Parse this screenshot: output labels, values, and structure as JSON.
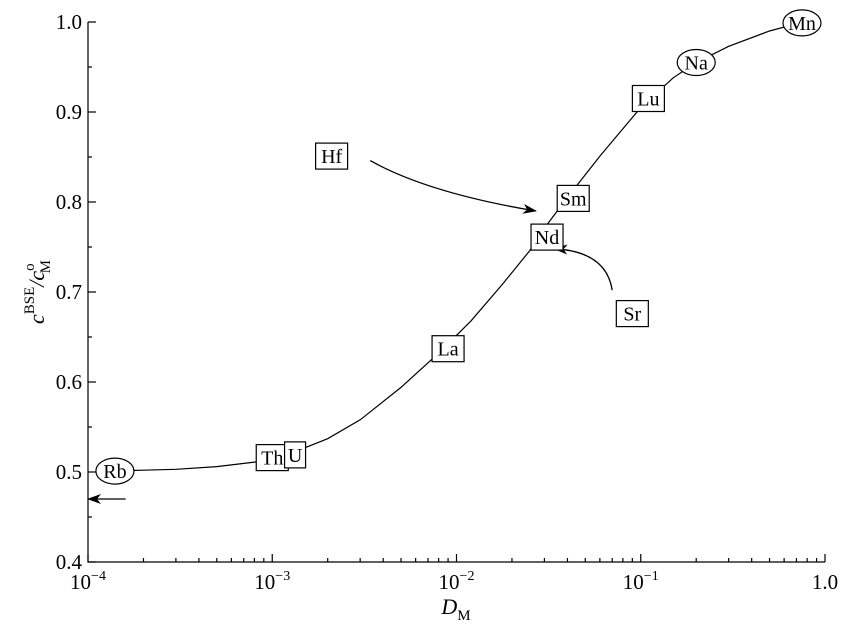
{
  "chart_data": {
    "type": "line",
    "xscale": "log",
    "xlim": [
      0.0001,
      1.0
    ],
    "ylim": [
      0.4,
      1.0
    ],
    "xlabel": "D",
    "xlabel_sub": "M",
    "ylabel": "c",
    "ylabel_sup": "BSE",
    "ylabel_mid": "/c",
    "ylabel_sup2": "o",
    "ylabel_sub": "M",
    "x_ticks": [
      {
        "value": 0.0001,
        "base": "10",
        "exp": "−4"
      },
      {
        "value": 0.001,
        "base": "10",
        "exp": "−3"
      },
      {
        "value": 0.01,
        "base": "10",
        "exp": "−2"
      },
      {
        "value": 0.1,
        "base": "10",
        "exp": "−1"
      },
      {
        "value": 1.0,
        "base": "1.0",
        "exp": ""
      }
    ],
    "y_ticks": [
      {
        "value": 0.4,
        "label": "0.4"
      },
      {
        "value": 0.5,
        "label": "0.5"
      },
      {
        "value": 0.6,
        "label": "0.6"
      },
      {
        "value": 0.7,
        "label": "0.7"
      },
      {
        "value": 0.8,
        "label": "0.8"
      },
      {
        "value": 0.9,
        "label": "0.9"
      },
      {
        "value": 1.0,
        "label": "1.0"
      }
    ],
    "y_minor_step": 0.05,
    "series": [
      {
        "x": [
          0.00013,
          0.0002,
          0.0003,
          0.0005,
          0.0008,
          0.0012,
          0.002,
          0.003,
          0.005,
          0.008,
          0.012,
          0.018,
          0.025,
          0.03,
          0.04,
          0.06,
          0.1,
          0.15,
          0.2,
          0.3,
          0.5,
          0.7,
          0.8
        ],
        "y": [
          0.501,
          0.502,
          0.503,
          0.506,
          0.511,
          0.519,
          0.537,
          0.558,
          0.594,
          0.632,
          0.668,
          0.71,
          0.746,
          0.771,
          0.805,
          0.851,
          0.905,
          0.938,
          0.955,
          0.973,
          0.99,
          0.998,
          1.0
        ]
      }
    ],
    "points": [
      {
        "label": "Rb",
        "x": 0.00014,
        "y": 0.501,
        "shape": "ellipse"
      },
      {
        "label": "Th",
        "x": 0.001,
        "y": 0.516,
        "shape": "box"
      },
      {
        "label": "U",
        "x": 0.00133,
        "y": 0.519,
        "shape": "box"
      },
      {
        "label": "La",
        "x": 0.009,
        "y": 0.637,
        "shape": "box"
      },
      {
        "label": "Nd",
        "x": 0.031,
        "y": 0.761,
        "shape": "box"
      },
      {
        "label": "Sm",
        "x": 0.043,
        "y": 0.804,
        "shape": "box"
      },
      {
        "label": "Lu",
        "x": 0.11,
        "y": 0.915,
        "shape": "box"
      },
      {
        "label": "Na",
        "x": 0.2,
        "y": 0.955,
        "shape": "ellipse"
      },
      {
        "label": "Mn",
        "x": 0.75,
        "y": 0.999,
        "shape": "ellipse"
      },
      {
        "label": "Hf",
        "x": 0.0021,
        "y": 0.851,
        "shape": "box"
      },
      {
        "label": "Sr",
        "x": 0.09,
        "y": 0.676,
        "shape": "box"
      }
    ],
    "arrows": [
      {
        "from": "Hf",
        "x1": 0.0034,
        "y1": 0.846,
        "cx": 0.007,
        "cy": 0.81,
        "x2": 0.027,
        "y2": 0.79
      },
      {
        "from": "Sr",
        "x1": 0.07,
        "y1": 0.702,
        "cx": 0.065,
        "cy": 0.745,
        "x2": 0.034,
        "y2": 0.748
      },
      {
        "from": "Rb",
        "x1": 0.00016,
        "y1": 0.47,
        "cx": 0.00013,
        "cy": 0.47,
        "x2": 0.0001,
        "y2": 0.47
      }
    ]
  }
}
